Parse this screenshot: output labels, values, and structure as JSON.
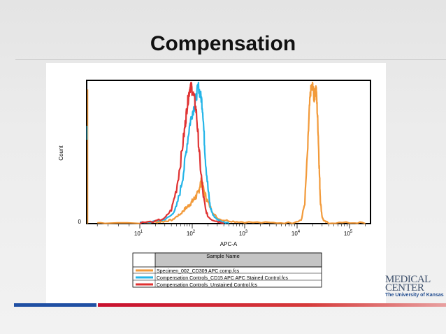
{
  "slide": {
    "title": "Compensation"
  },
  "logo": {
    "line1": "MEDICAL",
    "line2": "CENTER",
    "line3": "The University of Kansas"
  },
  "colors": {
    "orange": "#f29a3a",
    "cyan": "#25b5e8",
    "red": "#e03232",
    "footer_blue": "#1f4fa3",
    "footer_red": "#c8102e"
  },
  "chart_data": {
    "type": "line",
    "xlabel": "APC-A",
    "ylabel": "Count",
    "x_scale": "log",
    "xlim": [
      10,
      200000
    ],
    "ylim": [
      0,
      1
    ],
    "x_ticks": [
      {
        "value": 10,
        "base": "10",
        "exp": "1"
      },
      {
        "value": 100,
        "base": "10",
        "exp": "2"
      },
      {
        "value": 1000,
        "base": "10",
        "exp": "3"
      },
      {
        "value": 10000,
        "base": "10",
        "exp": "4"
      },
      {
        "value": 100000,
        "base": "10",
        "exp": "5"
      }
    ],
    "y_ticks": [
      {
        "value": 0,
        "label": "0"
      }
    ],
    "legend": {
      "header": "Sample Name",
      "placement": "below",
      "entries": [
        {
          "label": "Specimen_002_CD309 APC comp.fcs",
          "color": "#f29a3a"
        },
        {
          "label": "Compensation Controls_CD15 APC APC Stained Control.fcs",
          "color": "#25b5e8"
        },
        {
          "label": "Compensation Controls_Unstained Control.fcs",
          "color": "#e03232"
        }
      ]
    },
    "series": [
      {
        "name": "Specimen_002_CD309 APC comp.fcs",
        "color": "#f29a3a",
        "x": [
          2,
          10,
          20,
          30,
          40,
          50,
          60,
          70,
          80,
          90,
          100,
          110,
          120,
          130,
          140,
          150,
          160,
          180,
          200,
          250,
          300,
          400,
          600,
          1000,
          3000,
          8000,
          12000,
          14000,
          16000,
          17000,
          18000,
          19000,
          20000,
          21000,
          22000,
          23000,
          24000,
          25000,
          26000,
          27000,
          28000,
          30000,
          33000,
          40000,
          100000,
          200000
        ],
        "y": [
          0.0,
          0.0,
          0.005,
          0.01,
          0.02,
          0.05,
          0.07,
          0.1,
          0.12,
          0.14,
          0.16,
          0.18,
          0.2,
          0.22,
          0.28,
          0.3,
          0.26,
          0.2,
          0.15,
          0.08,
          0.04,
          0.02,
          0.01,
          0.005,
          0.0,
          0.0,
          0.02,
          0.15,
          0.55,
          0.8,
          0.95,
          0.98,
          1.0,
          0.9,
          0.94,
          0.99,
          0.85,
          0.7,
          0.5,
          0.3,
          0.15,
          0.05,
          0.01,
          0.0,
          0.0,
          0.0
        ]
      },
      {
        "name": "Compensation Controls_CD15 APC APC Stained Control.fcs",
        "color": "#25b5e8",
        "x": [
          10,
          20,
          30,
          40,
          50,
          60,
          70,
          80,
          90,
          100,
          110,
          120,
          130,
          140,
          150,
          160,
          170,
          180,
          200,
          220,
          250,
          300,
          350,
          400,
          500
        ],
        "y": [
          0.0,
          0.01,
          0.03,
          0.06,
          0.12,
          0.25,
          0.4,
          0.58,
          0.72,
          0.8,
          0.85,
          0.92,
          1.0,
          0.94,
          0.9,
          0.8,
          0.6,
          0.45,
          0.25,
          0.12,
          0.06,
          0.03,
          0.01,
          0.005,
          0.0
        ]
      },
      {
        "name": "Compensation Controls_Unstained Control.fcs",
        "color": "#e03232",
        "x": [
          10,
          20,
          30,
          40,
          50,
          60,
          70,
          75,
          80,
          85,
          90,
          95,
          100,
          110,
          120,
          130,
          140,
          160,
          180,
          200,
          250,
          300,
          400
        ],
        "y": [
          0.0,
          0.01,
          0.04,
          0.1,
          0.25,
          0.45,
          0.65,
          0.75,
          0.85,
          0.92,
          0.98,
          1.0,
          0.96,
          0.9,
          0.8,
          0.62,
          0.45,
          0.22,
          0.1,
          0.05,
          0.02,
          0.01,
          0.0
        ]
      }
    ]
  }
}
